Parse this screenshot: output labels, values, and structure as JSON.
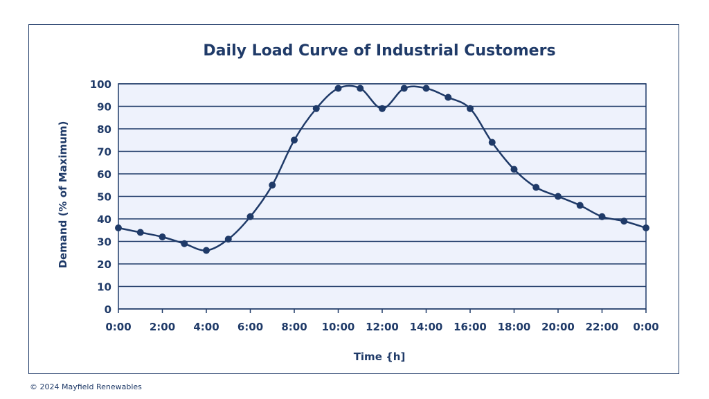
{
  "chart_data": {
    "type": "line",
    "title": "Daily Load Curve of Industrial Customers",
    "xlabel": "Time {h]",
    "ylabel": "Demand (% of Maximum)",
    "xlim": [
      0,
      24
    ],
    "ylim": [
      0,
      100
    ],
    "x_ticks": [
      "0:00",
      "2:00",
      "4:00",
      "6:00",
      "8:00",
      "10:00",
      "12:00",
      "14:00",
      "16:00",
      "18:00",
      "20:00",
      "22:00",
      "0:00"
    ],
    "y_ticks": [
      "0",
      "10",
      "20",
      "30",
      "40",
      "50",
      "60",
      "70",
      "80",
      "90",
      "100"
    ],
    "grid": true,
    "colors": {
      "line": "#1f3a68",
      "plot_bg": "#eef2fc",
      "grid": "#1f3a68"
    },
    "series": [
      {
        "x": [
          0,
          1,
          2,
          3,
          4,
          5,
          6,
          7,
          8,
          9,
          10,
          11,
          12,
          13,
          14,
          15,
          16,
          17,
          18,
          19,
          20,
          21,
          22,
          23,
          24
        ],
        "values": [
          36,
          34,
          32,
          29,
          26,
          31,
          41,
          55,
          75,
          89,
          98,
          98,
          89,
          98,
          98,
          94,
          89,
          74,
          62,
          54,
          50,
          46,
          41,
          39,
          36
        ]
      }
    ]
  },
  "footer": {
    "copyright": "© 2024 Mayfield Renewables"
  }
}
